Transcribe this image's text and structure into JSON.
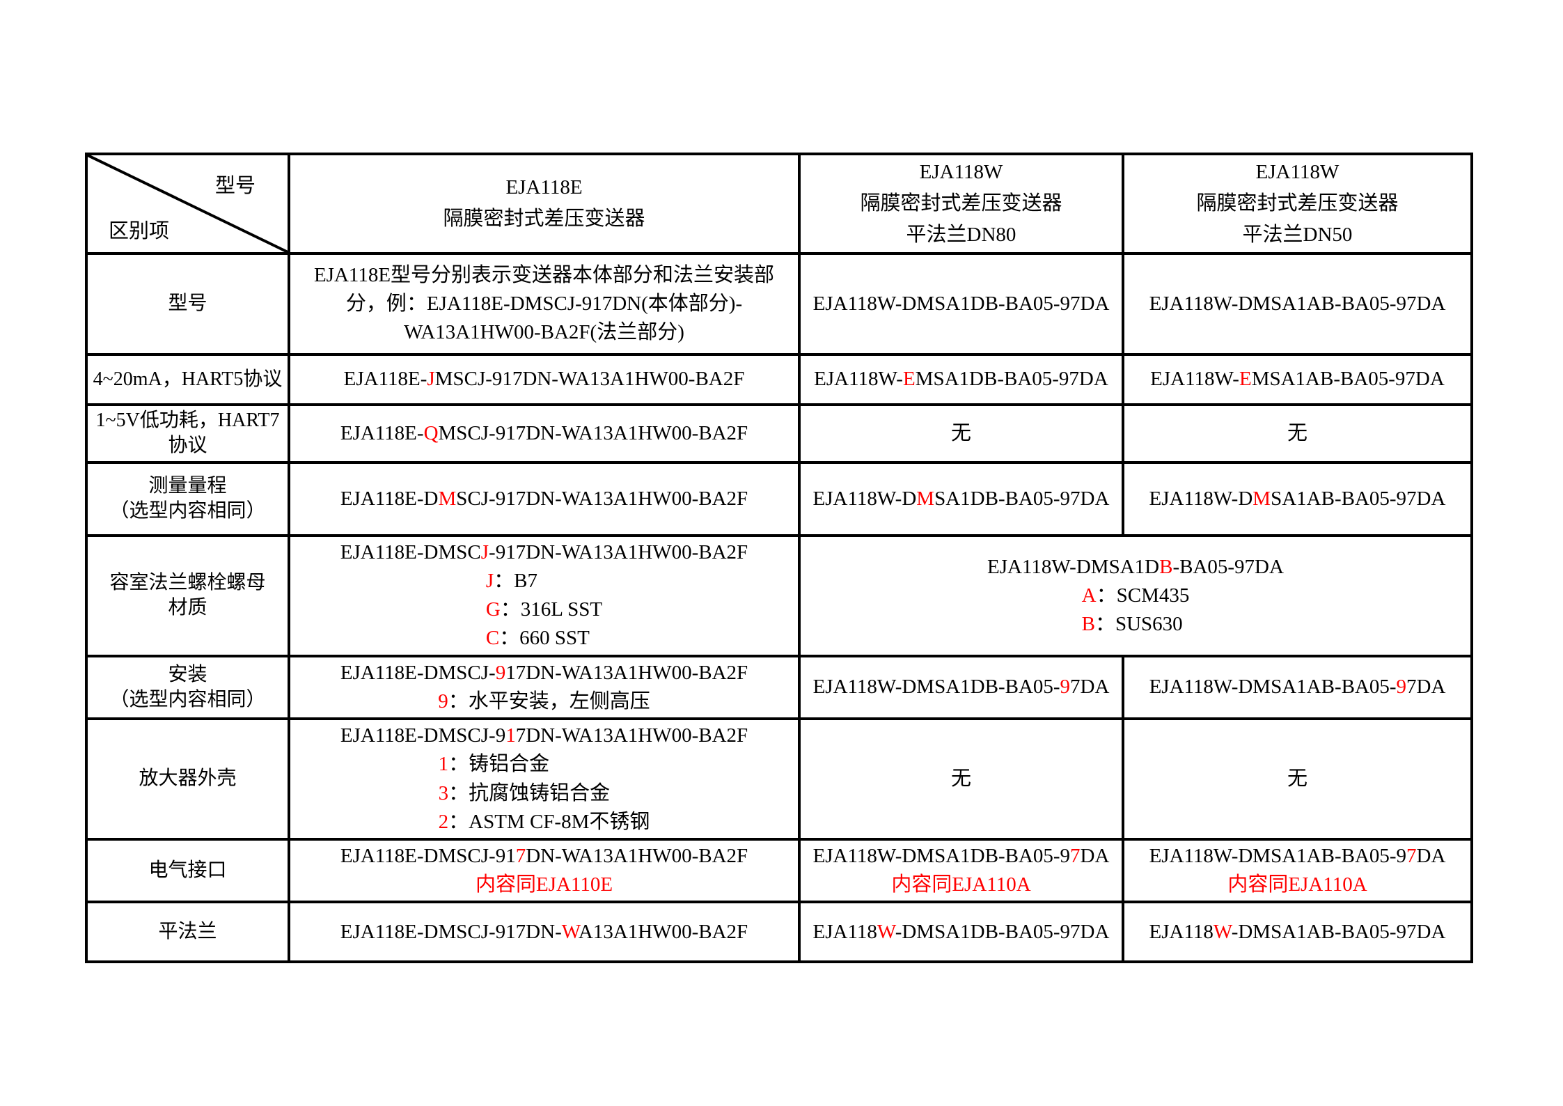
{
  "colors": {
    "red": "#ff0000",
    "text": "#000000",
    "border": "#000000",
    "background": "#ffffff"
  },
  "table": {
    "corner": {
      "top_right": "型号",
      "bottom_left": "区别项"
    },
    "header_columns": [
      {
        "lines": [
          "EJA118E",
          "隔膜密封式差压变送器"
        ]
      },
      {
        "lines": [
          "EJA118W",
          "隔膜密封式差压变送器",
          "平法兰DN80"
        ]
      },
      {
        "lines": [
          "EJA118W",
          "隔膜密封式差压变送器",
          "平法兰DN50"
        ]
      }
    ],
    "rows": [
      {
        "label_lines": [
          "型号"
        ],
        "cells": [
          {
            "colspan": 1,
            "wrap": true,
            "lines": [
              [
                {
                  "t": "EJA118E型号分别表示变送器本体部分和法兰安装部"
                }
              ],
              [
                {
                  "t": "分，例：EJA118E-DMSCJ-917DN(本体部分)-"
                }
              ],
              [
                {
                  "t": "WA13A1HW00-BA2F(法兰部分)"
                }
              ]
            ]
          },
          {
            "colspan": 1,
            "lines": [
              [
                {
                  "t": "EJA118W-DMSA1DB-BA05-97DA"
                }
              ]
            ]
          },
          {
            "colspan": 1,
            "lines": [
              [
                {
                  "t": "EJA118W-DMSA1AB-BA05-97DA"
                }
              ]
            ]
          }
        ]
      },
      {
        "label_lines": [
          "4~20mA，HART5协议"
        ],
        "cells": [
          {
            "colspan": 1,
            "lines": [
              [
                {
                  "t": "EJA118E-"
                },
                {
                  "t": "J",
                  "r": true
                },
                {
                  "t": "MSCJ-917DN-WA13A1HW00-BA2F"
                }
              ]
            ]
          },
          {
            "colspan": 1,
            "lines": [
              [
                {
                  "t": "EJA118W-"
                },
                {
                  "t": "E",
                  "r": true
                },
                {
                  "t": "MSA1DB-BA05-97DA"
                }
              ]
            ]
          },
          {
            "colspan": 1,
            "lines": [
              [
                {
                  "t": "EJA118W-"
                },
                {
                  "t": "E",
                  "r": true
                },
                {
                  "t": "MSA1AB-BA05-97DA"
                }
              ]
            ]
          }
        ]
      },
      {
        "label_lines": [
          "1~5V低功耗，HART7",
          "协议"
        ],
        "cells": [
          {
            "colspan": 1,
            "lines": [
              [
                {
                  "t": "EJA118E-"
                },
                {
                  "t": "Q",
                  "r": true
                },
                {
                  "t": "MSCJ-917DN-WA13A1HW00-BA2F"
                }
              ]
            ]
          },
          {
            "colspan": 1,
            "lines": [
              [
                {
                  "t": "无"
                }
              ]
            ]
          },
          {
            "colspan": 1,
            "lines": [
              [
                {
                  "t": "无"
                }
              ]
            ]
          }
        ]
      },
      {
        "label_lines": [
          "测量量程",
          "（选型内容相同）"
        ],
        "cells": [
          {
            "colspan": 1,
            "lines": [
              [
                {
                  "t": "EJA118E-D"
                },
                {
                  "t": "M",
                  "r": true
                },
                {
                  "t": "SCJ-917DN-WA13A1HW00-BA2F"
                }
              ]
            ]
          },
          {
            "colspan": 1,
            "lines": [
              [
                {
                  "t": "EJA118W-D"
                },
                {
                  "t": "M",
                  "r": true
                },
                {
                  "t": "SA1DB-BA05-97DA"
                }
              ]
            ]
          },
          {
            "colspan": 1,
            "lines": [
              [
                {
                  "t": "EJA118W-D"
                },
                {
                  "t": "M",
                  "r": true
                },
                {
                  "t": "SA1AB-BA05-97DA"
                }
              ]
            ]
          }
        ]
      },
      {
        "label_lines": [
          "容室法兰螺栓螺母",
          "材质"
        ],
        "cells": [
          {
            "colspan": 1,
            "lines": [
              [
                {
                  "t": "EJA118E-DMSC"
                },
                {
                  "t": "J",
                  "r": true
                },
                {
                  "t": "-917DN-WA13A1HW00-BA2F"
                }
              ],
              [
                {
                  "t": "J",
                  "r": true
                },
                {
                  "t": "：B7"
                }
              ],
              [
                {
                  "t": "G",
                  "r": true
                },
                {
                  "t": "：316L SST"
                }
              ],
              [
                {
                  "t": "C",
                  "r": true
                },
                {
                  "t": "：660 SST"
                }
              ]
            ]
          },
          {
            "colspan": 2,
            "lines": [
              [
                {
                  "t": "EJA118W-DMSA1D"
                },
                {
                  "t": "B",
                  "r": true
                },
                {
                  "t": "-BA05-97DA"
                }
              ],
              [
                {
                  "t": "A",
                  "r": true
                },
                {
                  "t": "：SCM435"
                }
              ],
              [
                {
                  "t": "B",
                  "r": true
                },
                {
                  "t": "：SUS630"
                }
              ]
            ]
          }
        ]
      },
      {
        "label_lines": [
          "安装",
          "（选型内容相同）"
        ],
        "cells": [
          {
            "colspan": 1,
            "lines": [
              [
                {
                  "t": "EJA118E-DMSCJ-"
                },
                {
                  "t": "9",
                  "r": true
                },
                {
                  "t": "17DN-WA13A1HW00-BA2F"
                }
              ],
              [
                {
                  "t": "9",
                  "r": true
                },
                {
                  "t": "：水平安装，左侧高压"
                }
              ]
            ]
          },
          {
            "colspan": 1,
            "lines": [
              [
                {
                  "t": "EJA118W-DMSA1DB-BA05-"
                },
                {
                  "t": "9",
                  "r": true
                },
                {
                  "t": "7DA"
                }
              ]
            ]
          },
          {
            "colspan": 1,
            "lines": [
              [
                {
                  "t": "EJA118W-DMSA1AB-BA05-"
                },
                {
                  "t": "9",
                  "r": true
                },
                {
                  "t": "7DA"
                }
              ]
            ]
          }
        ]
      },
      {
        "label_lines": [
          "放大器外壳"
        ],
        "cells": [
          {
            "colspan": 1,
            "lines": [
              [
                {
                  "t": "EJA118E-DMSCJ-9"
                },
                {
                  "t": "1",
                  "r": true
                },
                {
                  "t": "7DN-WA13A1HW00-BA2F"
                }
              ],
              [
                {
                  "t": "1",
                  "r": true
                },
                {
                  "t": "：铸铝合金"
                }
              ],
              [
                {
                  "t": "3",
                  "r": true
                },
                {
                  "t": "：抗腐蚀铸铝合金"
                }
              ],
              [
                {
                  "t": "2",
                  "r": true
                },
                {
                  "t": "：ASTM CF-8M不锈钢"
                }
              ]
            ]
          },
          {
            "colspan": 1,
            "lines": [
              [
                {
                  "t": "无"
                }
              ]
            ]
          },
          {
            "colspan": 1,
            "lines": [
              [
                {
                  "t": "无"
                }
              ]
            ]
          }
        ]
      },
      {
        "label_lines": [
          "电气接口"
        ],
        "cells": [
          {
            "colspan": 1,
            "lines": [
              [
                {
                  "t": "EJA118E-DMSCJ-91"
                },
                {
                  "t": "7",
                  "r": true
                },
                {
                  "t": "DN-WA13A1HW00-BA2F"
                }
              ],
              [
                {
                  "t": "内容同EJA110E",
                  "r": true
                }
              ]
            ]
          },
          {
            "colspan": 1,
            "lines": [
              [
                {
                  "t": "EJA118W-DMSA1DB-BA05-9"
                },
                {
                  "t": "7",
                  "r": true
                },
                {
                  "t": "DA"
                }
              ],
              [
                {
                  "t": "内容同EJA110A",
                  "r": true
                }
              ]
            ]
          },
          {
            "colspan": 1,
            "lines": [
              [
                {
                  "t": "EJA118W-DMSA1AB-BA05-9"
                },
                {
                  "t": "7",
                  "r": true
                },
                {
                  "t": "DA"
                }
              ],
              [
                {
                  "t": "内容同EJA110A",
                  "r": true
                }
              ]
            ]
          }
        ]
      },
      {
        "label_lines": [
          "平法兰"
        ],
        "cells": [
          {
            "colspan": 1,
            "lines": [
              [
                {
                  "t": "EJA118E-DMSCJ-917DN-"
                },
                {
                  "t": "W",
                  "r": true
                },
                {
                  "t": "A13A1HW00-BA2F"
                }
              ]
            ]
          },
          {
            "colspan": 1,
            "lines": [
              [
                {
                  "t": "EJA118"
                },
                {
                  "t": "W",
                  "r": true
                },
                {
                  "t": "-DMSA1DB-BA05-97DA"
                }
              ]
            ]
          },
          {
            "colspan": 1,
            "lines": [
              [
                {
                  "t": "EJA118"
                },
                {
                  "t": "W",
                  "r": true
                },
                {
                  "t": "-DMSA1AB-BA05-97DA"
                }
              ]
            ]
          }
        ]
      }
    ]
  }
}
